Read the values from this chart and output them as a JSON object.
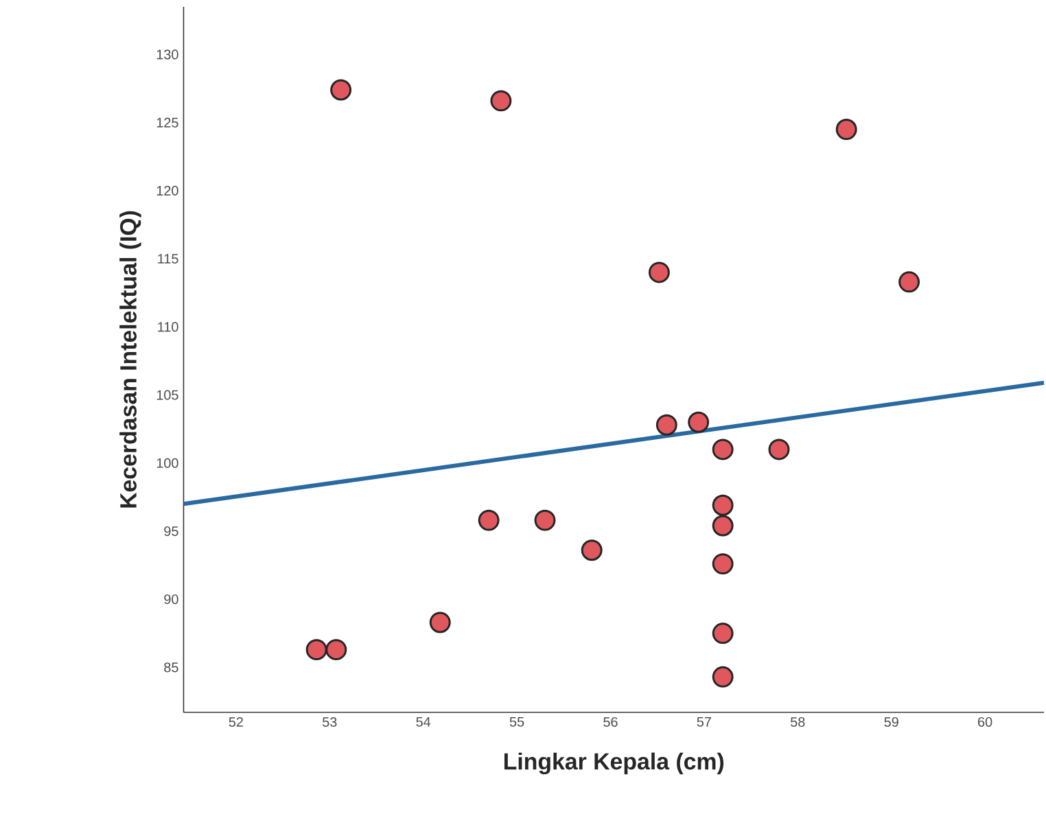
{
  "chart_data": {
    "type": "scatter",
    "xlabel": "Lingkar Kepala (cm)",
    "ylabel": "Kecerdasan Intelektual (IQ)",
    "xlim": [
      51.44,
      60.63
    ],
    "ylim": [
      81.7,
      133.5
    ],
    "xticks": [
      52,
      53,
      54,
      55,
      56,
      57,
      58,
      59,
      60
    ],
    "yticks": [
      85,
      90,
      95,
      100,
      105,
      110,
      115,
      120,
      125,
      130
    ],
    "series": [
      {
        "marker": "circle",
        "color": "#e0585e",
        "x": [
          53.12,
          54.83,
          58.52,
          56.52,
          59.19,
          56.6,
          56.94,
          57.2,
          57.8,
          57.2,
          57.2,
          57.2,
          57.2,
          57.2,
          54.7,
          55.3,
          55.8,
          54.18,
          52.86,
          53.07
        ],
        "values": [
          127.4,
          126.6,
          124.5,
          114.0,
          113.3,
          102.8,
          103.0,
          101.0,
          101.0,
          96.9,
          95.4,
          92.6,
          87.5,
          84.3,
          95.8,
          95.8,
          93.6,
          88.3,
          86.3,
          86.3
        ]
      },
      {
        "type": "line",
        "marker": "none",
        "color": "#2a6aa0",
        "x": [
          51.44,
          60.63
        ],
        "values": [
          97.0,
          105.9
        ]
      }
    ]
  }
}
